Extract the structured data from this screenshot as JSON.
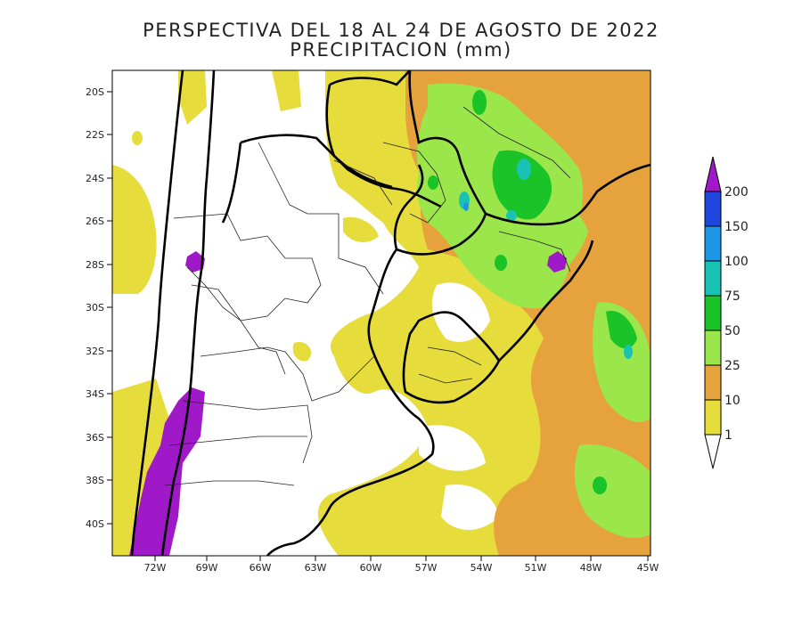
{
  "title_line1": "PERSPECTIVA DEL 18 AL 24 DE AGOSTO DE 2022",
  "title_line2": "PRECIPITACION (mm)",
  "lat_labels": [
    "20S",
    "22S",
    "24S",
    "26S",
    "28S",
    "30S",
    "32S",
    "34S",
    "36S",
    "38S",
    "40S"
  ],
  "lon_labels": [
    "72W",
    "69W",
    "66W",
    "63W",
    "60W",
    "57W",
    "54W",
    "51W",
    "48W",
    "45W"
  ],
  "colorbar": {
    "levels": [
      "1",
      "10",
      "25",
      "50",
      "75",
      "100",
      "150",
      "200"
    ],
    "colors": [
      "#ffffff",
      "#e6dc3c",
      "#e6a23c",
      "#9be64b",
      "#19c328",
      "#19c3b4",
      "#1e96e6",
      "#1e46dc",
      "#a019c8"
    ]
  },
  "colors": {
    "yellow": "#e6dc3c",
    "orange": "#e6a23c",
    "lightgreen": "#9be64b",
    "green": "#19c328",
    "teal": "#19c3b4",
    "blue": "#1e96e6",
    "purple": "#a019c8"
  }
}
